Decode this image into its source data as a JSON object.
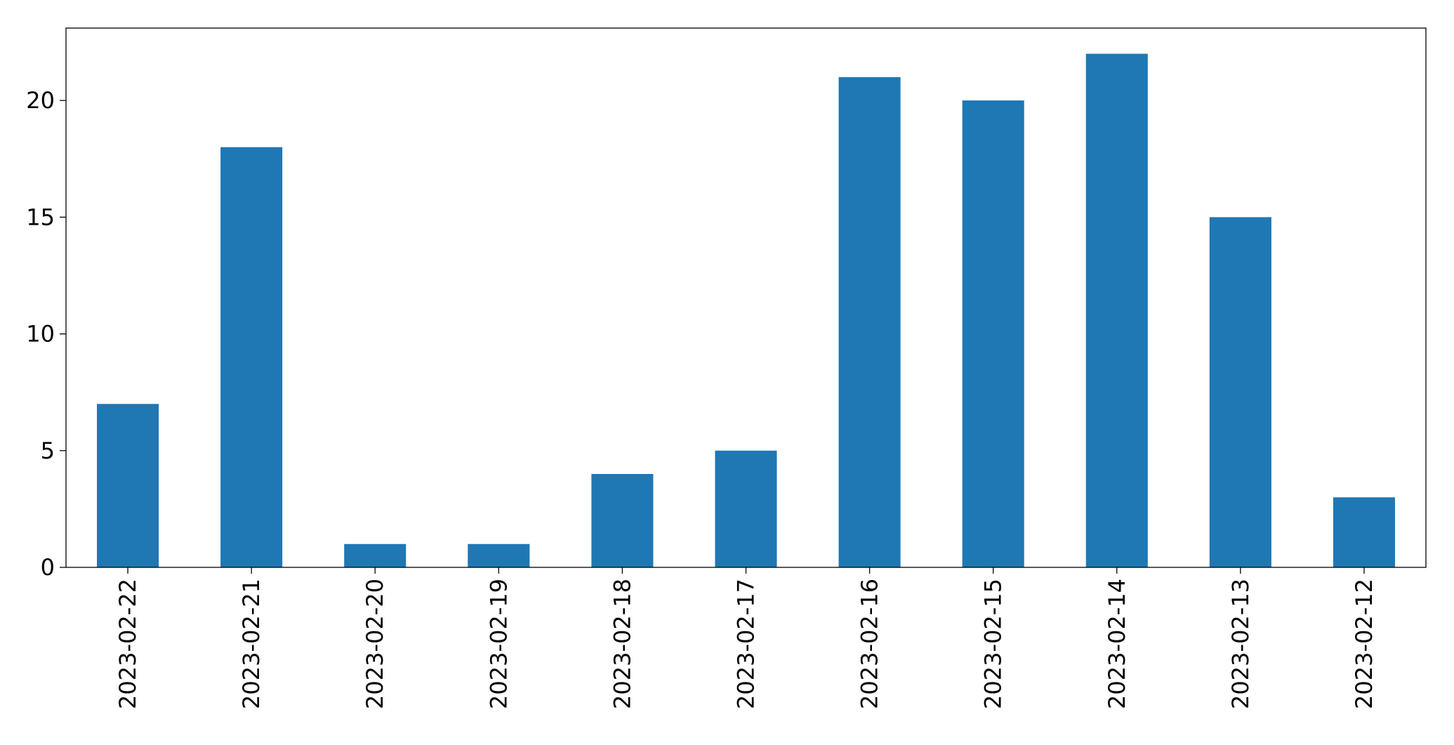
{
  "chart_data": {
    "type": "bar",
    "categories": [
      "2023-02-22",
      "2023-02-21",
      "2023-02-20",
      "2023-02-19",
      "2023-02-18",
      "2023-02-17",
      "2023-02-16",
      "2023-02-15",
      "2023-02-14",
      "2023-02-13",
      "2023-02-12"
    ],
    "values": [
      7,
      18,
      1,
      1,
      4,
      5,
      21,
      20,
      22,
      15,
      3
    ],
    "color": "#1f77b4",
    "ylim": [
      0,
      23.1
    ],
    "yticks": [
      0,
      5,
      10,
      15,
      20
    ],
    "grid": false
  }
}
